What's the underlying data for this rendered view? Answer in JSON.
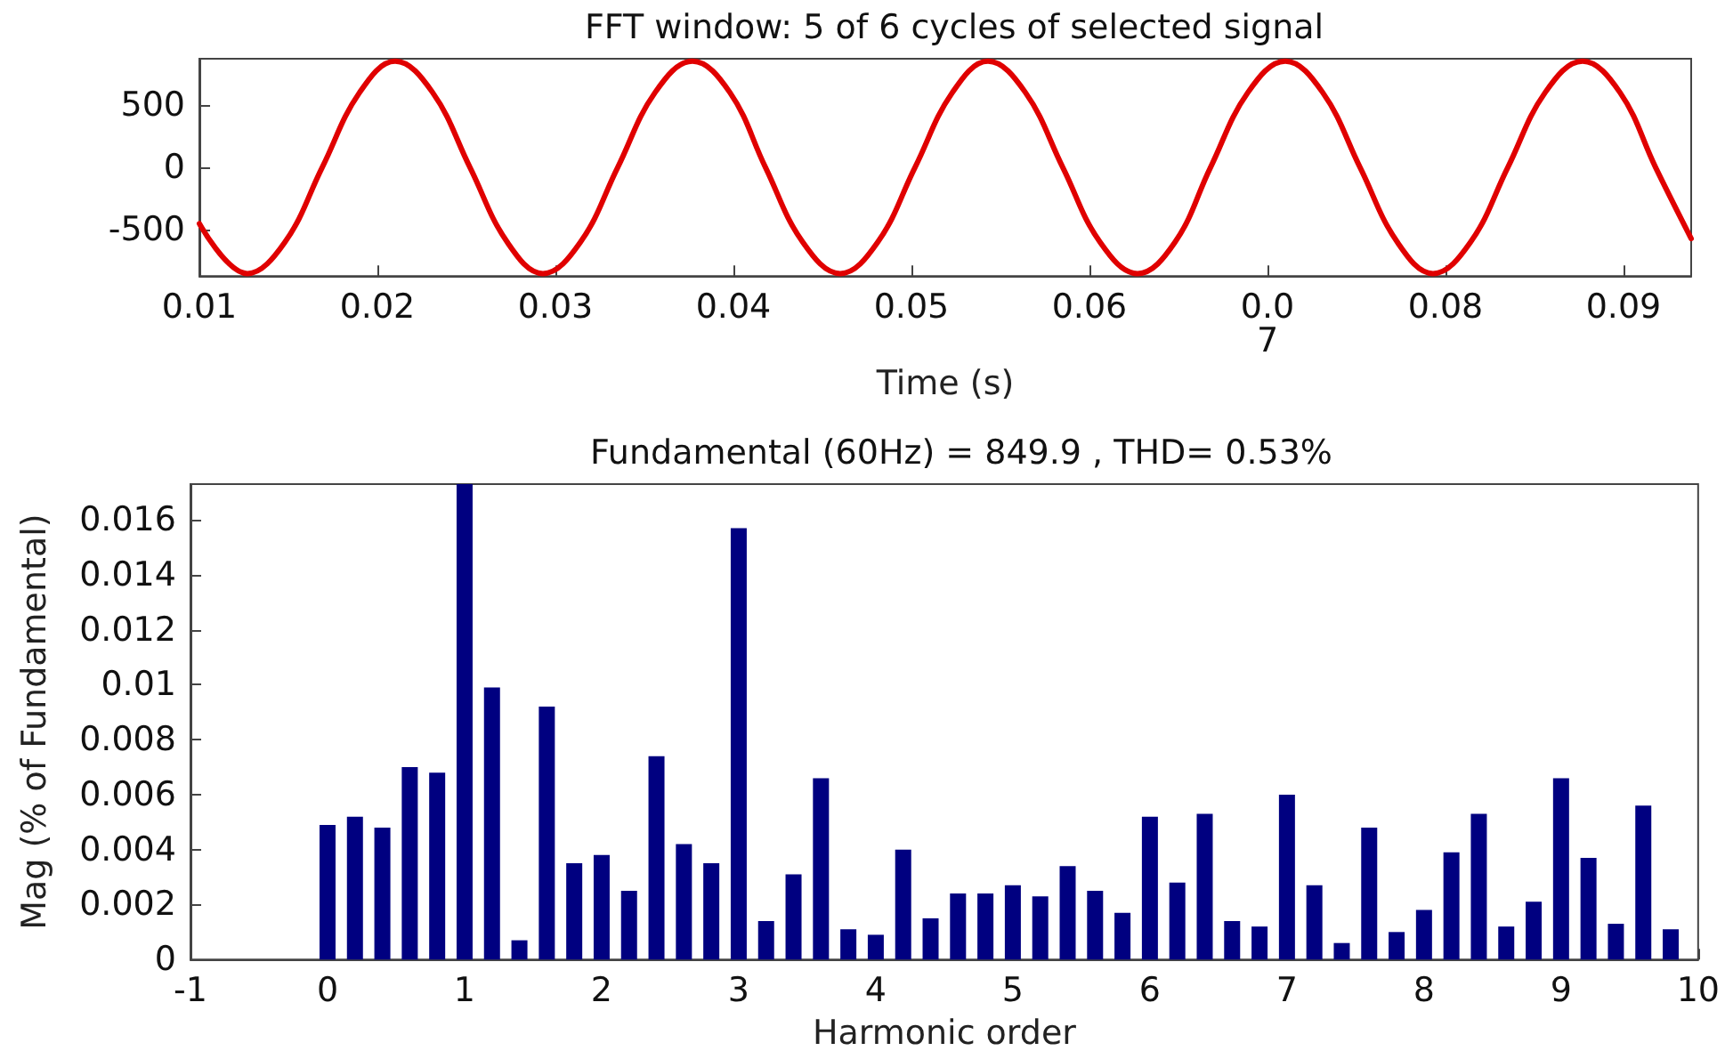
{
  "chart_data": [
    {
      "type": "line",
      "title": "FFT window: 5 of 6 cycles of selected signal",
      "xlabel": "Time (s)",
      "grid": false,
      "marker": "none",
      "line_style": "solid",
      "xlim": [
        0.01,
        0.0938
      ],
      "xticks": [
        0.01,
        0.02,
        0.03,
        0.04,
        0.05,
        0.06,
        {
          "value": 0.07,
          "label": "0.0\n7"
        },
        0.08,
        0.09
      ],
      "ylim": [
        -870,
        870
      ],
      "yticks": [
        -500,
        0,
        500
      ],
      "series": [
        {
          "color": "#e00000",
          "x": [
            0.01,
            0.0127,
            0.0148,
            0.0169,
            0.019,
            0.021,
            0.0231,
            0.0252,
            0.0273,
            0.0293,
            0.0314,
            0.0335,
            0.0356,
            0.0377,
            0.0398,
            0.0418,
            0.0439,
            0.046,
            0.0481,
            0.0502,
            0.0523,
            0.0543,
            0.0564,
            0.0585,
            0.0606,
            0.0627,
            0.0648,
            0.0668,
            0.0689,
            0.071,
            0.0731,
            0.0752,
            0.0773,
            0.0793,
            0.0814,
            0.0835,
            0.0856,
            0.0877,
            0.0898,
            0.0918,
            0.0938
          ],
          "values": [
            -450,
            -850,
            -600,
            0,
            600,
            850,
            600,
            0,
            -600,
            -850,
            -600,
            0,
            600,
            850,
            600,
            0,
            -600,
            -850,
            -600,
            0,
            600,
            850,
            600,
            0,
            -600,
            -850,
            -600,
            0,
            600,
            850,
            600,
            0,
            -600,
            -850,
            -600,
            0,
            600,
            850,
            600,
            0,
            -570
          ]
        }
      ]
    },
    {
      "type": "bar",
      "title": "Fundamental (60Hz) = 849.9 , THD= 0.53%",
      "xlabel": "Harmonic order",
      "ylabel": "Mag (% of Fundamental)",
      "grid": false,
      "xlim": [
        -1,
        10
      ],
      "xticks": [
        -1,
        0,
        1,
        2,
        3,
        4,
        5,
        6,
        7,
        8,
        9,
        10
      ],
      "ylim": [
        0,
        0.0173
      ],
      "yticks": [
        0,
        0.002,
        0.004,
        0.006,
        0.008,
        0.01,
        0.012,
        0.014,
        0.016
      ],
      "x": [
        0,
        0.2,
        0.4,
        0.6,
        0.8,
        1,
        1.2,
        1.4,
        1.6,
        1.8,
        2,
        2.2,
        2.4,
        2.6,
        2.8,
        3,
        3.2,
        3.4,
        3.6,
        3.8,
        4,
        4.2,
        4.4,
        4.6,
        4.8,
        5,
        5.2,
        5.4,
        5.6,
        5.8,
        6,
        6.2,
        6.4,
        6.6,
        6.8,
        7,
        7.2,
        7.4,
        7.6,
        7.8,
        8,
        8.2,
        8.4,
        8.6,
        8.8,
        9,
        9.2,
        9.4,
        9.6,
        9.8
      ],
      "series": [
        {
          "color": "#000080",
          "values": [
            0.0049,
            0.0052,
            0.0048,
            0.007,
            0.0068,
            0.0173,
            0.0099,
            0.0007,
            0.0092,
            0.0035,
            0.0038,
            0.0025,
            0.0074,
            0.0042,
            0.0035,
            0.0157,
            0.0014,
            0.0031,
            0.0066,
            0.0011,
            0.0009,
            0.004,
            0.0015,
            0.0024,
            0.0024,
            0.0027,
            0.0023,
            0.0034,
            0.0025,
            0.0017,
            0.0052,
            0.0028,
            0.0053,
            0.0014,
            0.0012,
            0.006,
            0.0027,
            0.0006,
            0.0048,
            0.001,
            0.0018,
            0.0039,
            0.0053,
            0.0012,
            0.0021,
            0.0066,
            0.0037,
            0.0013,
            0.0056,
            0.0011
          ]
        }
      ]
    }
  ]
}
